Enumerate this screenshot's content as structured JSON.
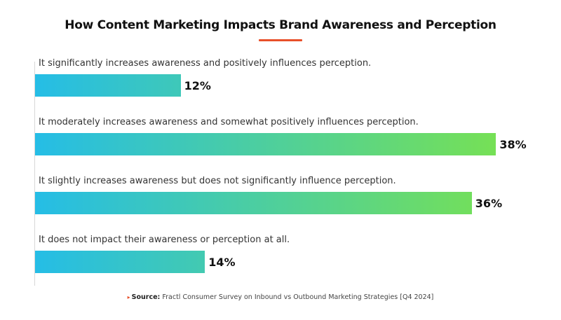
{
  "chart_data": {
    "type": "bar",
    "orientation": "horizontal",
    "title": "How Content Marketing Impacts Brand Awareness and Perception",
    "categories": [
      "It significantly increases awareness and positively influences perception.",
      "It moderately increases awareness and somewhat positively influences perception.",
      "It slightly increases awareness but does not significantly influence perception.",
      "It does not impact their awareness or perception at all."
    ],
    "values": [
      12,
      38,
      36,
      14
    ],
    "value_labels": [
      "12%",
      "38%",
      "36%",
      "14%"
    ],
    "unit": "%",
    "xlim": [
      0,
      40
    ],
    "grid": false,
    "legend": "none",
    "bar_gradient": [
      "#25bde6",
      "#7ae24e"
    ]
  },
  "source": {
    "marker": "▸",
    "label": "Source:",
    "text": "Fractl Consumer Survey on Inbound vs Outbound Marketing Strategies [Q4 2024]"
  },
  "colors": {
    "accent": "#e8502a",
    "bar_start": "#25bde6",
    "bar_end": "#7ae24e"
  }
}
